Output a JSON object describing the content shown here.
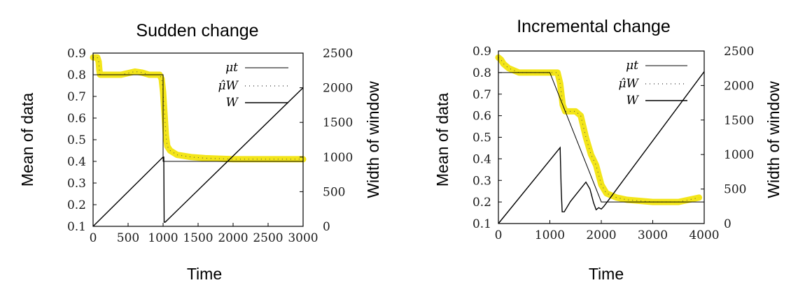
{
  "chart_data": [
    {
      "type": "line",
      "title": "Sudden change",
      "xlabel": "Time",
      "ylabel": "Mean of data",
      "y2label": "Width of window",
      "xlim": [
        0,
        3000
      ],
      "ylim": [
        0.1,
        0.9
      ],
      "y2lim": [
        0,
        2500
      ],
      "xticks": [
        "0",
        "500",
        "1000",
        "1500",
        "2000",
        "2500",
        "3000"
      ],
      "yticks": [
        "0.1",
        "0.2",
        "0.3",
        "0.4",
        "0.5",
        "0.6",
        "0.7",
        "0.8",
        "0.9"
      ],
      "y2ticks": [
        "0",
        "500",
        "1000",
        "1500",
        "2000",
        "2500"
      ],
      "legend": [
        "μt",
        "μ̂W",
        "W"
      ],
      "legend_position": "top-right",
      "grid": false,
      "series": [
        {
          "key": "mu_t",
          "axis": "left",
          "color": "#000000",
          "x": [
            0,
            1000,
            1000,
            3000
          ],
          "y": [
            0.8,
            0.8,
            0.4,
            0.4
          ]
        },
        {
          "key": "mu_hat_w",
          "axis": "left",
          "color": "#f2e200",
          "x": [
            0,
            30,
            60,
            80,
            90,
            100,
            200,
            400,
            600,
            700,
            800,
            900,
            950,
            980,
            1000,
            1020,
            1040,
            1060,
            1100,
            1200,
            1400,
            1600,
            2000,
            2500,
            3000
          ],
          "y": [
            0.88,
            0.88,
            0.88,
            0.86,
            0.82,
            0.8,
            0.8,
            0.8,
            0.815,
            0.81,
            0.8,
            0.8,
            0.8,
            0.78,
            0.72,
            0.62,
            0.52,
            0.47,
            0.45,
            0.43,
            0.42,
            0.415,
            0.41,
            0.41,
            0.41
          ]
        },
        {
          "key": "W",
          "axis": "right",
          "color": "#000000",
          "x": [
            0,
            1000,
            1010,
            1015,
            1030,
            3000
          ],
          "y": [
            0,
            1000,
            1000,
            60,
            60,
            2000
          ]
        }
      ]
    },
    {
      "type": "line",
      "title": "Incremental change",
      "xlabel": "Time",
      "ylabel": "Mean of data",
      "y2label": "Width of window",
      "xlim": [
        0,
        4000
      ],
      "ylim": [
        0.1,
        0.9
      ],
      "y2lim": [
        0,
        2500
      ],
      "xticks": [
        "0",
        "1000",
        "2000",
        "3000",
        "4000"
      ],
      "yticks": [
        "0.1",
        "0.2",
        "0.3",
        "0.4",
        "0.5",
        "0.6",
        "0.7",
        "0.8",
        "0.9"
      ],
      "y2ticks": [
        "0",
        "500",
        "1000",
        "1500",
        "2000",
        "2500"
      ],
      "legend": [
        "μt",
        "μ̂W",
        "W"
      ],
      "legend_position": "top-right",
      "grid": false,
      "series": [
        {
          "key": "mu_t",
          "axis": "left",
          "color": "#000000",
          "x": [
            0,
            1000,
            2000,
            4000
          ],
          "y": [
            0.8,
            0.8,
            0.2,
            0.2
          ]
        },
        {
          "key": "mu_hat_w",
          "axis": "left",
          "color": "#f2e200",
          "x": [
            0,
            50,
            100,
            200,
            400,
            800,
            1150,
            1200,
            1250,
            1300,
            1500,
            1600,
            1700,
            1800,
            1900,
            2000,
            2100,
            2300,
            2500,
            3000,
            3500,
            3900
          ],
          "y": [
            0.87,
            0.86,
            0.84,
            0.82,
            0.8,
            0.8,
            0.8,
            0.75,
            0.65,
            0.62,
            0.62,
            0.6,
            0.5,
            0.42,
            0.37,
            0.28,
            0.24,
            0.22,
            0.21,
            0.2,
            0.2,
            0.22
          ]
        },
        {
          "key": "W",
          "axis": "right",
          "color": "#000000",
          "x": [
            0,
            1200,
            1220,
            1240,
            1280,
            1400,
            1700,
            1780,
            1850,
            1900,
            1950,
            2000,
            2050,
            2100,
            4000
          ],
          "y": [
            0,
            1100,
            500,
            170,
            170,
            320,
            600,
            500,
            300,
            200,
            230,
            210,
            250,
            300,
            2200
          ]
        }
      ]
    }
  ]
}
